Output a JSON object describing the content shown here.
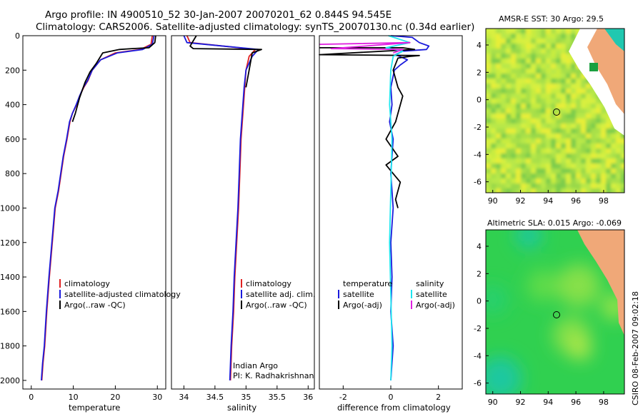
{
  "header": {
    "line1": "Argo profile: IN 4900510_52 30-Jan-2007 20070201_62 0.844S 94.545E",
    "line2": "Climatology: CARS2006. Satellite-adjusted climatology: synTS_20070130.nc (0.34d earlier)"
  },
  "colors": {
    "climatology": "#e02020",
    "satellite": "#1a1adc",
    "argo": "#000000",
    "sat_sal": "#1ee6f0",
    "argo_sal": "#e020e0"
  },
  "chart_data": [
    {
      "id": "temperature",
      "type": "line",
      "xlabel": "temperature",
      "ylabel": "",
      "xlim": [
        -2,
        32
      ],
      "ylim": [
        2050,
        0
      ],
      "xticks": [
        0,
        10,
        20,
        30
      ],
      "xtick_labels": [
        "0",
        "10",
        "20",
        "30"
      ],
      "yticks": [
        0,
        200,
        400,
        600,
        800,
        1000,
        1200,
        1400,
        1600,
        1800,
        2000
      ],
      "ytick_labels": [
        "0",
        "200",
        "400",
        "600",
        "800",
        "1000",
        "1200",
        "1400",
        "1600",
        "1800",
        "2000"
      ],
      "series": [
        {
          "name": "climatology",
          "color": "#e02020",
          "x": [
            28.8,
            28.5,
            26,
            20,
            16.5,
            14.5,
            13.5,
            12.5,
            11.5,
            10.8,
            9.8,
            9.2,
            8.5,
            7.7,
            6.5,
            5.7,
            5.0,
            4.3,
            3.7,
            3.2,
            2.8,
            2.5
          ],
          "y": [
            0,
            50,
            80,
            100,
            140,
            200,
            260,
            300,
            350,
            400,
            450,
            500,
            600,
            700,
            900,
            1000,
            1200,
            1400,
            1600,
            1800,
            1900,
            2000
          ]
        },
        {
          "name": "satellite-adjusted climatology",
          "color": "#1a1adc",
          "x": [
            29.2,
            28.8,
            26.5,
            20.5,
            16.5,
            14.5,
            13.4,
            12.4,
            11.5,
            10.7,
            9.8,
            9.1,
            8.4,
            7.6,
            6.4,
            5.6,
            4.9,
            4.2,
            3.6,
            3.1,
            2.7,
            2.4
          ],
          "y": [
            0,
            50,
            80,
            100,
            140,
            200,
            260,
            300,
            350,
            400,
            450,
            500,
            600,
            700,
            900,
            1000,
            1200,
            1400,
            1600,
            1800,
            1900,
            2000
          ]
        },
        {
          "name": "Argo(..raw -QC)",
          "color": "#000000",
          "x": [
            29.6,
            29.4,
            28.0,
            24.0,
            21.0,
            17.0,
            15.5,
            14.0,
            12.8,
            11.5,
            10.5,
            9.8
          ],
          "y": [
            0,
            40,
            70,
            75,
            80,
            100,
            160,
            210,
            270,
            360,
            450,
            500
          ]
        }
      ],
      "legend": [
        "climatology",
        "satellite-adjusted climatology",
        "Argo(..raw -QC)"
      ]
    },
    {
      "id": "salinity",
      "type": "line",
      "xlabel": "salinity",
      "xlim": [
        33.8,
        36.1
      ],
      "ylim": [
        2050,
        0
      ],
      "xticks": [
        34,
        34.5,
        35,
        35.5,
        36
      ],
      "xtick_labels": [
        "34",
        "34.5",
        "35",
        "35.5",
        "36"
      ],
      "series": [
        {
          "name": "climatology",
          "color": "#e02020",
          "x": [
            34.05,
            34.1,
            35.15,
            35.05,
            35.0,
            34.98,
            34.95,
            34.92,
            34.9,
            34.88,
            34.85,
            34.82,
            34.8,
            34.77,
            34.75
          ],
          "y": [
            0,
            40,
            80,
            120,
            200,
            300,
            450,
            600,
            800,
            1000,
            1200,
            1400,
            1600,
            1800,
            2000
          ]
        },
        {
          "name": "satellite adj. clim.",
          "color": "#1a1adc",
          "x": [
            34.0,
            34.05,
            35.2,
            35.1,
            35.0,
            34.97,
            34.94,
            34.91,
            34.89,
            34.87,
            34.84,
            34.81,
            34.79,
            34.76,
            34.74
          ],
          "y": [
            0,
            40,
            80,
            120,
            200,
            300,
            450,
            600,
            800,
            1000,
            1200,
            1400,
            1600,
            1800,
            2000
          ]
        },
        {
          "name": "Argo(..raw -QC)",
          "color": "#000000",
          "x": [
            34.2,
            34.1,
            34.15,
            35.25,
            35.1,
            35.05,
            35.0
          ],
          "y": [
            0,
            60,
            75,
            80,
            100,
            200,
            300
          ]
        }
      ],
      "legend": [
        "climatology",
        "satellite adj. clim.",
        "Argo(..raw -QC)"
      ],
      "annotation": [
        "Indian Argo",
        "PI: K. Radhakrishnan"
      ]
    },
    {
      "id": "difference",
      "type": "line",
      "xlabel": "difference from climatology",
      "xlim": [
        -3,
        3
      ],
      "ylim": [
        2050,
        0
      ],
      "xticks": [
        -2,
        0,
        2
      ],
      "xtick_labels": [
        "-2",
        "0",
        "2"
      ],
      "series": [
        {
          "name": "temperature satellite",
          "color": "#1a1adc",
          "x": [
            0,
            0.9,
            1.2,
            1.6,
            1.5,
            0.5,
            0.2,
            0.7,
            0.4,
            0.15,
            0.0,
            0.05,
            -0.05,
            0.1,
            0.0,
            0.1,
            0.0,
            0.05,
            0.0,
            0.1,
            0.0
          ],
          "y": [
            0,
            10,
            40,
            60,
            80,
            90,
            110,
            140,
            170,
            200,
            300,
            400,
            500,
            600,
            800,
            1000,
            1200,
            1400,
            1600,
            1800,
            2000
          ]
        },
        {
          "name": "temperature Argo(-adj)",
          "color": "#000000",
          "x": [
            -3.0,
            0.5,
            1.0,
            -3.0,
            1.2,
            0.8,
            0.3,
            0.1,
            0.3,
            0.5,
            0.2,
            -0.2,
            0.3,
            -0.2,
            0.1,
            0.4,
            0.2,
            0.3
          ],
          "y": [
            70,
            70,
            80,
            110,
            115,
            120,
            130,
            200,
            300,
            350,
            500,
            600,
            700,
            750,
            800,
            850,
            950,
            1000
          ]
        },
        {
          "name": "salinity satellite",
          "color": "#1ee6f0",
          "x": [
            -0.1,
            0.8,
            -0.2,
            0.5,
            0.1,
            0.0,
            -0.05,
            0.05,
            0.0,
            -0.05,
            0.0,
            0.05,
            0.0
          ],
          "y": [
            0,
            40,
            70,
            90,
            120,
            200,
            400,
            600,
            900,
            1200,
            1500,
            1800,
            2000
          ]
        },
        {
          "name": "salinity Argo(-adj)",
          "color": "#e020e0",
          "x": [
            -3.0,
            0.8,
            -2.5,
            0.5,
            0.1
          ],
          "y": [
            50,
            40,
            75,
            80,
            100
          ]
        }
      ],
      "legend": {
        "temperature": {
          "title": "temperature",
          "items": [
            "satellite",
            "Argo(-adj)"
          ]
        },
        "salinity": {
          "title": "salinity",
          "items": [
            "satellite",
            "Argo(-adj)"
          ]
        }
      }
    },
    {
      "id": "sst_map",
      "type": "heatmap",
      "title": "AMSR-E SST: 30 Argo: 29.5",
      "xlim": [
        89.5,
        99.5
      ],
      "ylim": [
        -6.8,
        5.2
      ],
      "xticks": [
        90,
        92,
        94,
        96,
        98
      ],
      "xtick_labels": [
        "90",
        "92",
        "94",
        "96",
        "98"
      ],
      "yticks": [
        4,
        2,
        0,
        -2,
        -4,
        -6
      ],
      "ytick_labels": [
        "4",
        "2",
        "0",
        "-2",
        "-4",
        "-6"
      ],
      "argo_position": [
        94.545,
        -0.844
      ]
    },
    {
      "id": "sla_map",
      "type": "heatmap",
      "title": "Altimetric SLA: 0.015 Argo: -0.069",
      "xlim": [
        89.5,
        99.5
      ],
      "ylim": [
        -6.8,
        5.2
      ],
      "xticks": [
        90,
        92,
        94,
        96,
        98
      ],
      "xtick_labels": [
        "90",
        "92",
        "94",
        "96",
        "98"
      ],
      "yticks": [
        4,
        2,
        0,
        -2,
        -4,
        -6
      ],
      "ytick_labels": [
        "4",
        "2",
        "0",
        "-2",
        "-4",
        "-6"
      ],
      "argo_position": [
        94.545,
        -0.844
      ]
    }
  ],
  "footer": {
    "credit": "CSIRO 08-Feb-2007 09:02:18"
  }
}
